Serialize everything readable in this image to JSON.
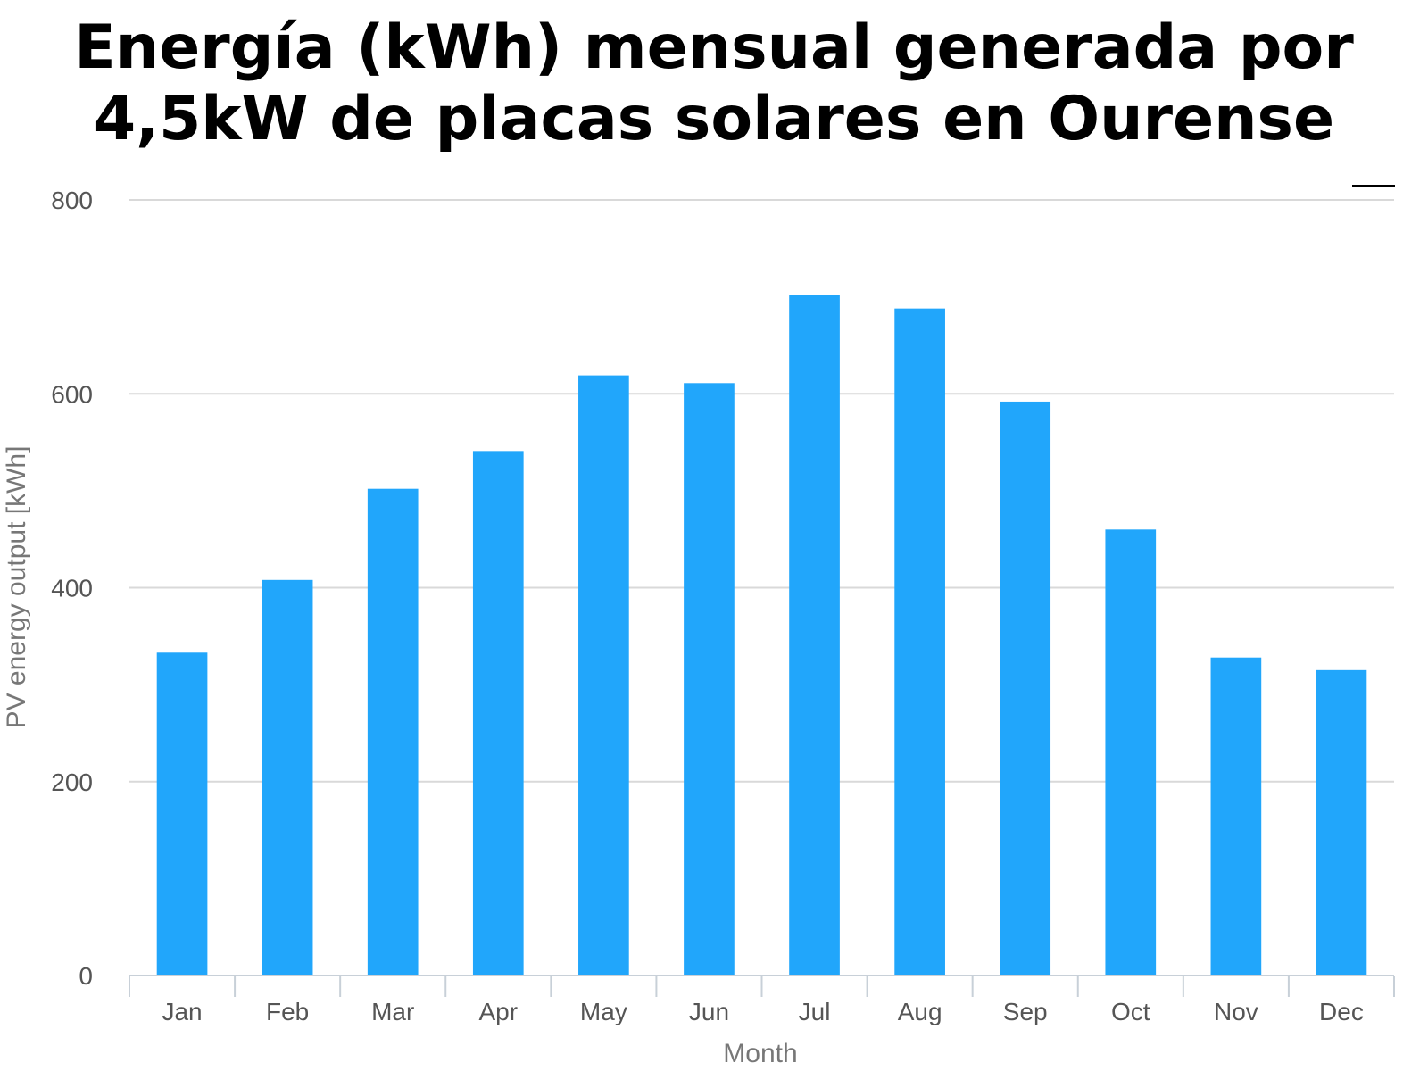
{
  "title": {
    "line1": "Energía (kWh) mensual generada por",
    "line2": "4,5kW de placas solares en Ourense"
  },
  "colors": {
    "bar": "#21a6fb",
    "grid": "#d9d9d9",
    "axis": "#c8d0d8",
    "tick_text": "#555555"
  },
  "chart_data": {
    "type": "bar",
    "categories": [
      "Jan",
      "Feb",
      "Mar",
      "Apr",
      "May",
      "Jun",
      "Jul",
      "Aug",
      "Sep",
      "Oct",
      "Nov",
      "Dec"
    ],
    "values": [
      333,
      408,
      502,
      541,
      619,
      611,
      702,
      688,
      592,
      460,
      328,
      315
    ],
    "title": "Energía (kWh) mensual generada por 4,5kW de placas solares en Ourense",
    "xlabel": "Month",
    "ylabel": "PV energy output [kWh]",
    "ylim": [
      0,
      800
    ],
    "yticks": [
      0,
      200,
      400,
      600,
      800
    ],
    "grid": true,
    "legend": "none"
  }
}
